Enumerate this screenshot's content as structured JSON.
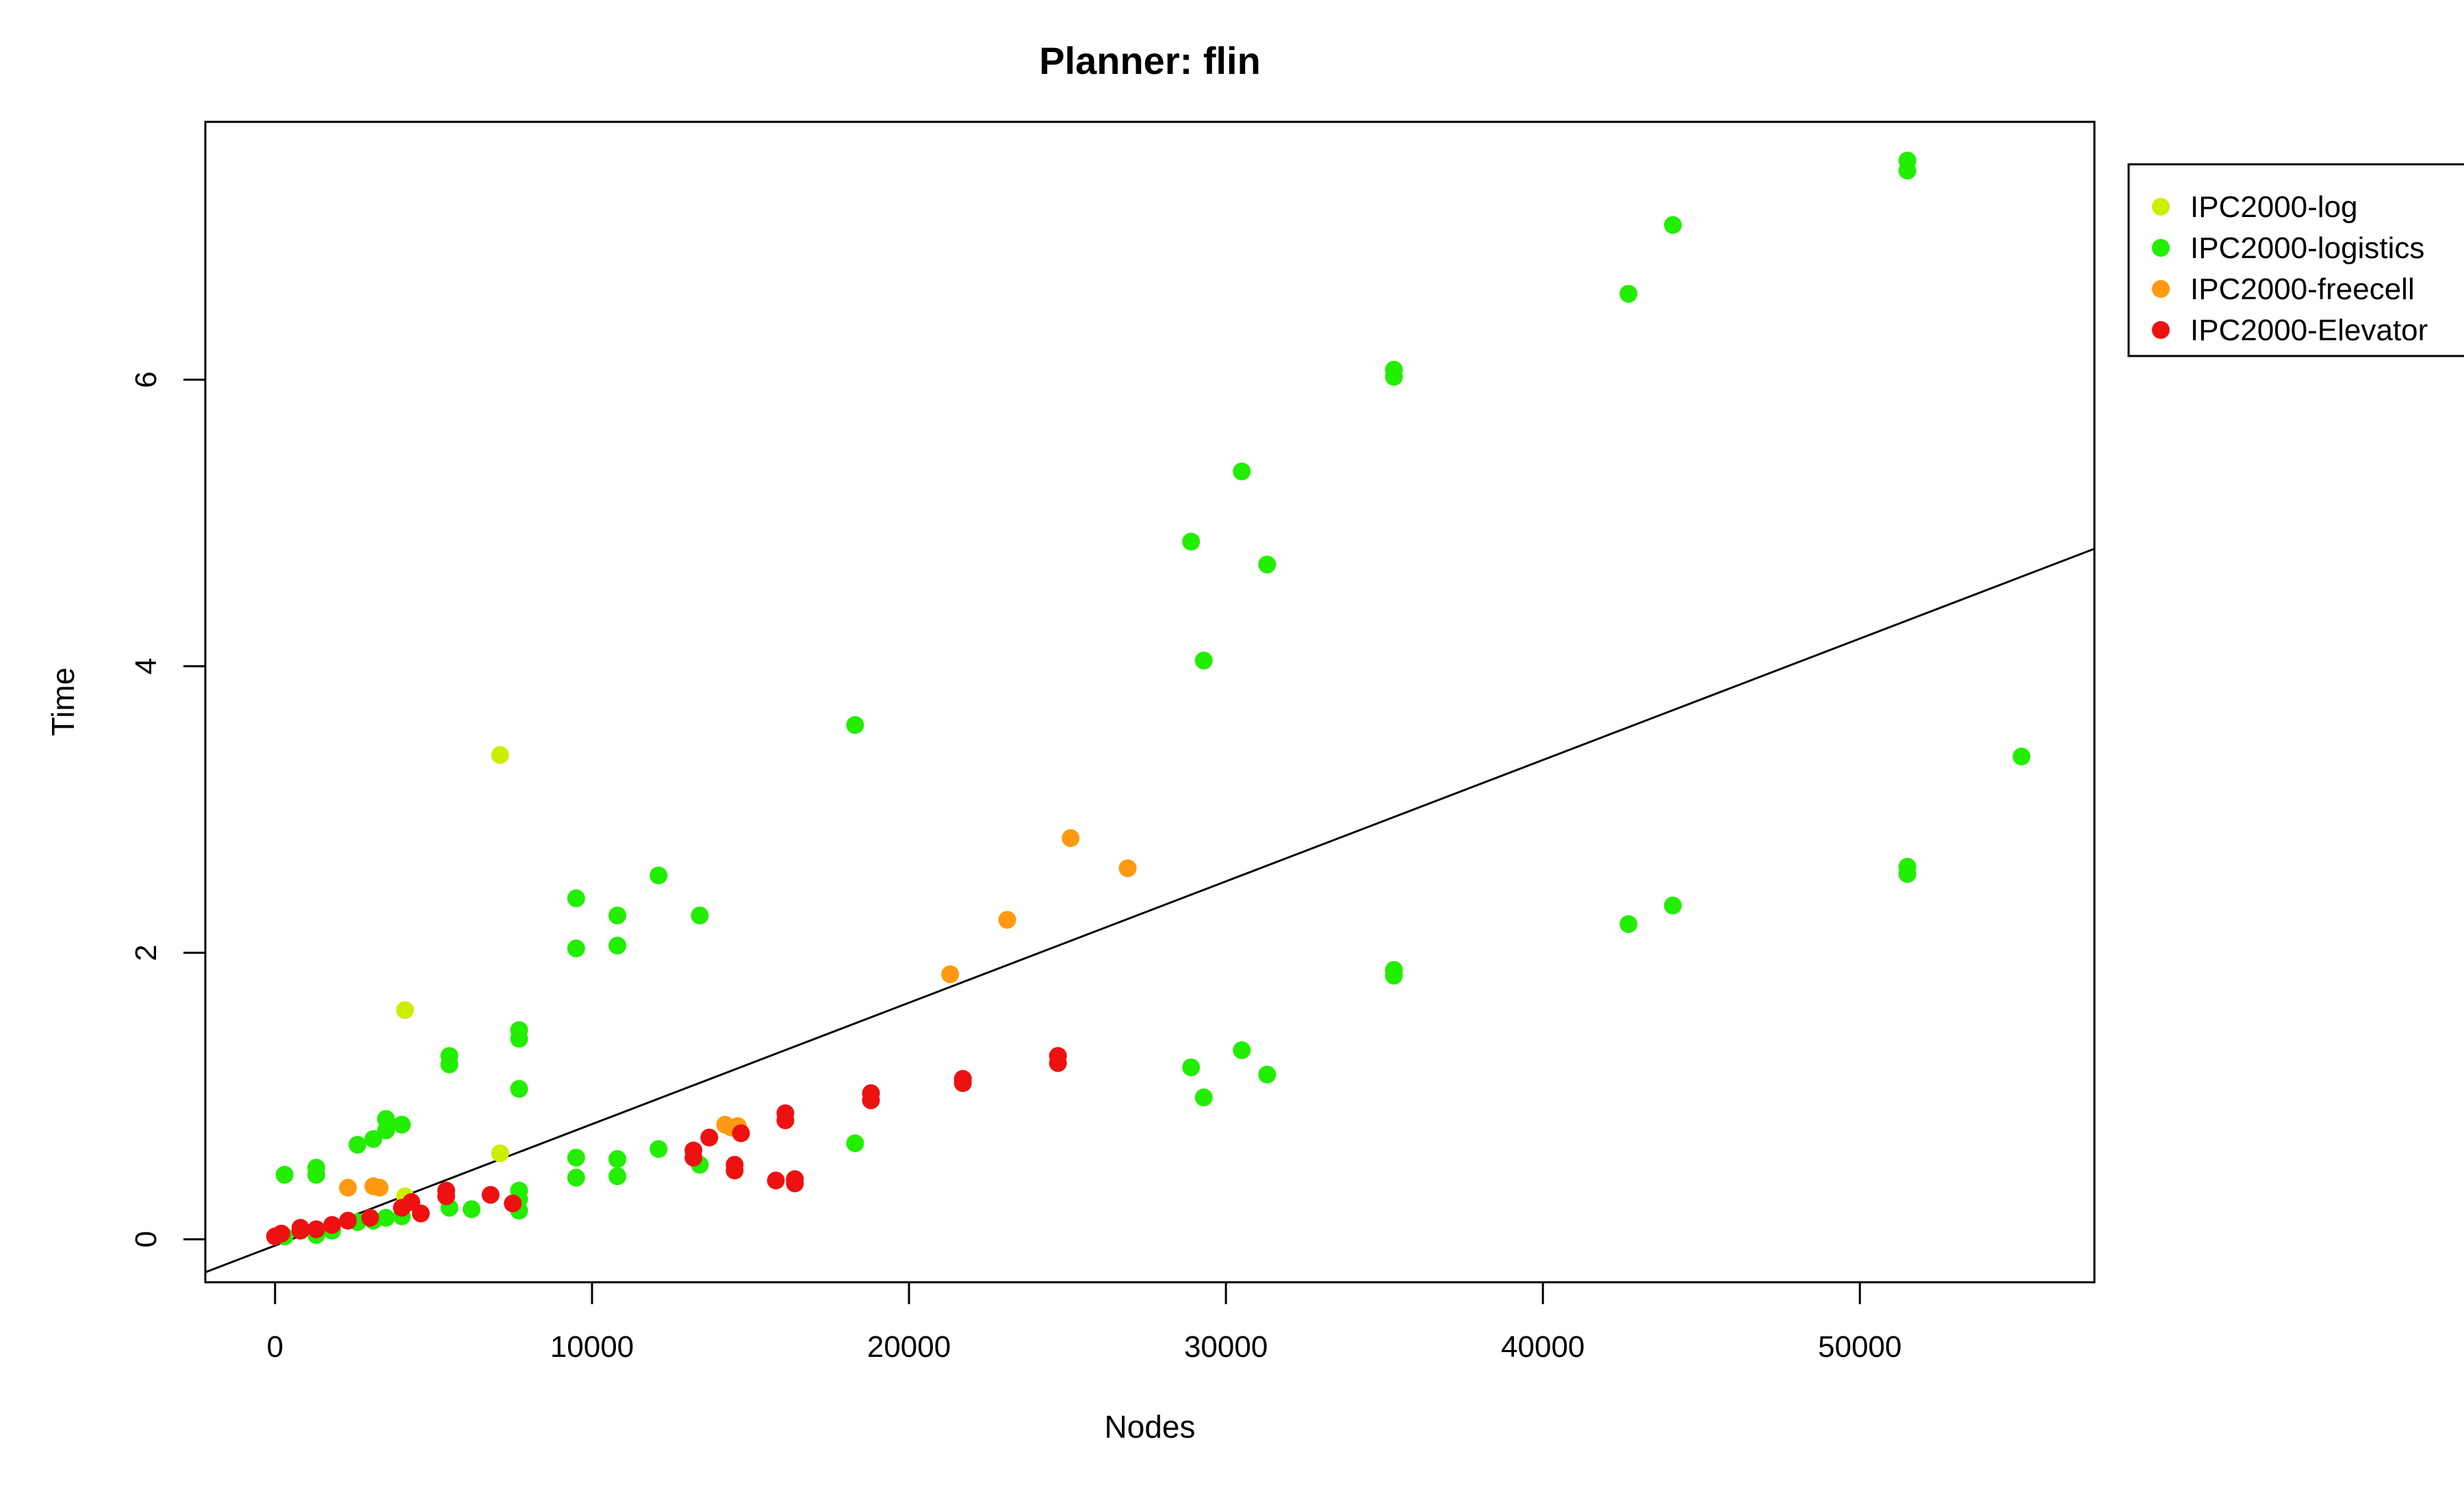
{
  "chart_data": {
    "type": "scatter",
    "title": "Planner: flin",
    "xlabel": "Nodes",
    "ylabel": "Time",
    "xlim": [
      -2200,
      57400
    ],
    "ylim": [
      -0.3,
      7.8
    ],
    "x_ticks": [
      0,
      10000,
      20000,
      30000,
      40000,
      50000
    ],
    "y_ticks": [
      0,
      2,
      4,
      6
    ],
    "grid": false,
    "legend_position": "right",
    "fit_line": {
      "x": [
        -2200,
        57400
      ],
      "y": [
        -0.23,
        4.82
      ]
    },
    "series": [
      {
        "name": "IPC2000-log",
        "color": "#ccee00",
        "points": [
          [
            4100,
            1.6
          ],
          [
            7100,
            3.38
          ],
          [
            7100,
            0.6
          ],
          [
            4100,
            0.3
          ],
          [
            1300,
            0.05
          ],
          [
            300,
            0.02
          ]
        ]
      },
      {
        "name": "IPC2000-logistics",
        "color": "#22ee00",
        "points": [
          [
            300,
            0.45
          ],
          [
            1300,
            0.5
          ],
          [
            1300,
            0.45
          ],
          [
            2600,
            0.66
          ],
          [
            3100,
            0.7
          ],
          [
            3500,
            0.76
          ],
          [
            3500,
            0.84
          ],
          [
            4000,
            0.8
          ],
          [
            5500,
            1.28
          ],
          [
            5500,
            1.22
          ],
          [
            7700,
            1.46
          ],
          [
            7700,
            1.4
          ],
          [
            7700,
            1.05
          ],
          [
            9500,
            2.38
          ],
          [
            9500,
            2.03
          ],
          [
            10800,
            2.26
          ],
          [
            10800,
            2.05
          ],
          [
            12100,
            2.54
          ],
          [
            13400,
            2.26
          ],
          [
            18300,
            3.59
          ],
          [
            9500,
            0.57
          ],
          [
            9500,
            0.43
          ],
          [
            10800,
            0.56
          ],
          [
            10800,
            0.44
          ],
          [
            12100,
            0.63
          ],
          [
            13400,
            0.52
          ],
          [
            18300,
            0.67
          ],
          [
            7700,
            0.34
          ],
          [
            7700,
            0.28
          ],
          [
            7700,
            0.2
          ],
          [
            6200,
            0.21
          ],
          [
            5500,
            0.22
          ],
          [
            4000,
            0.16
          ],
          [
            3500,
            0.15
          ],
          [
            3100,
            0.13
          ],
          [
            2600,
            0.12
          ],
          [
            1800,
            0.06
          ],
          [
            1300,
            0.03
          ],
          [
            300,
            0.02
          ],
          [
            28900,
            4.87
          ],
          [
            30500,
            5.36
          ],
          [
            29300,
            4.04
          ],
          [
            31300,
            4.71
          ],
          [
            28900,
            1.2
          ],
          [
            30500,
            1.32
          ],
          [
            29300,
            0.99
          ],
          [
            31300,
            1.15
          ],
          [
            35300,
            6.07
          ],
          [
            35300,
            6.02
          ],
          [
            35300,
            1.88
          ],
          [
            35300,
            1.84
          ],
          [
            42700,
            6.6
          ],
          [
            44100,
            7.08
          ],
          [
            42700,
            2.2
          ],
          [
            44100,
            2.33
          ],
          [
            51500,
            7.53
          ],
          [
            51500,
            7.46
          ],
          [
            51500,
            2.6
          ],
          [
            51500,
            2.55
          ],
          [
            55100,
            3.37
          ]
        ]
      },
      {
        "name": "IPC2000-freecell",
        "color": "#ff9911",
        "points": [
          [
            2300,
            0.36
          ],
          [
            3100,
            0.37
          ],
          [
            3300,
            0.36
          ],
          [
            14200,
            0.8
          ],
          [
            14400,
            0.78
          ],
          [
            14600,
            0.79
          ],
          [
            21300,
            1.85
          ],
          [
            23100,
            2.23
          ],
          [
            25100,
            2.8
          ],
          [
            26900,
            2.59
          ]
        ]
      },
      {
        "name": "IPC2000-Elevator",
        "color": "#ee1111",
        "points": [
          [
            0,
            0.02
          ],
          [
            200,
            0.04
          ],
          [
            800,
            0.08
          ],
          [
            800,
            0.06
          ],
          [
            1300,
            0.07
          ],
          [
            1800,
            0.1
          ],
          [
            2300,
            0.13
          ],
          [
            3000,
            0.15
          ],
          [
            4000,
            0.22
          ],
          [
            4300,
            0.26
          ],
          [
            4600,
            0.18
          ],
          [
            5400,
            0.34
          ],
          [
            5400,
            0.3
          ],
          [
            6800,
            0.31
          ],
          [
            7500,
            0.25
          ],
          [
            13200,
            0.62
          ],
          [
            13200,
            0.57
          ],
          [
            13700,
            0.71
          ],
          [
            14700,
            0.74
          ],
          [
            14500,
            0.52
          ],
          [
            14500,
            0.48
          ],
          [
            15800,
            0.41
          ],
          [
            16100,
            0.88
          ],
          [
            16100,
            0.83
          ],
          [
            16400,
            0.39
          ],
          [
            16400,
            0.42
          ],
          [
            18800,
            1.02
          ],
          [
            18800,
            0.97
          ],
          [
            21700,
            1.12
          ],
          [
            21700,
            1.09
          ],
          [
            24700,
            1.28
          ],
          [
            24700,
            1.23
          ]
        ]
      }
    ]
  }
}
